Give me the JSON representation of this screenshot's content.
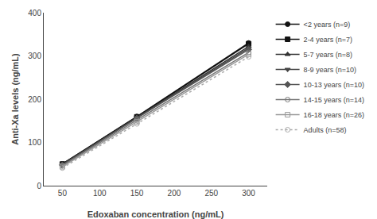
{
  "chart_data": {
    "type": "line",
    "x": [
      50,
      150,
      300
    ],
    "series": [
      {
        "name": "<2 years (n=9)",
        "values": [
          50,
          160,
          330
        ],
        "color": "#111111",
        "marker": "circle",
        "line_style": "solid"
      },
      {
        "name": "2-4 years (n=7)",
        "values": [
          50,
          159,
          328
        ],
        "color": "#111111",
        "marker": "square",
        "line_style": "solid"
      },
      {
        "name": "5-7 years (n=8)",
        "values": [
          49,
          158,
          322
        ],
        "color": "#333333",
        "marker": "triangle-up",
        "line_style": "solid"
      },
      {
        "name": "8-9 years (n=10)",
        "values": [
          49,
          157,
          318
        ],
        "color": "#444444",
        "marker": "triangle-down",
        "line_style": "solid"
      },
      {
        "name": "10-13 years (n=10)",
        "values": [
          48,
          156,
          315
        ],
        "color": "#555555",
        "marker": "diamond",
        "line_style": "solid"
      },
      {
        "name": "14-15 years (n=14)",
        "values": [
          46,
          152,
          308
        ],
        "color": "#777777",
        "marker": "circle-open",
        "line_style": "solid"
      },
      {
        "name": "16-18 years (n=26)",
        "values": [
          44,
          148,
          304
        ],
        "color": "#999999",
        "marker": "square-open",
        "line_style": "solid"
      },
      {
        "name": "Adults (n=58)",
        "values": [
          41,
          143,
          298
        ],
        "color": "#aaaaaa",
        "marker": "circle-open",
        "line_style": "dotted"
      }
    ],
    "x_label": "Edoxaban concentration (ng/mL)",
    "y_label": "Anti-Xa levels (ng/mL)",
    "xlim": [
      25,
      325
    ],
    "ylim": [
      0,
      400
    ],
    "xticks": [
      50,
      100,
      150,
      200,
      250,
      300
    ],
    "yticks": [
      0,
      100,
      200,
      300,
      400
    ],
    "grid": false,
    "legend": "right"
  }
}
